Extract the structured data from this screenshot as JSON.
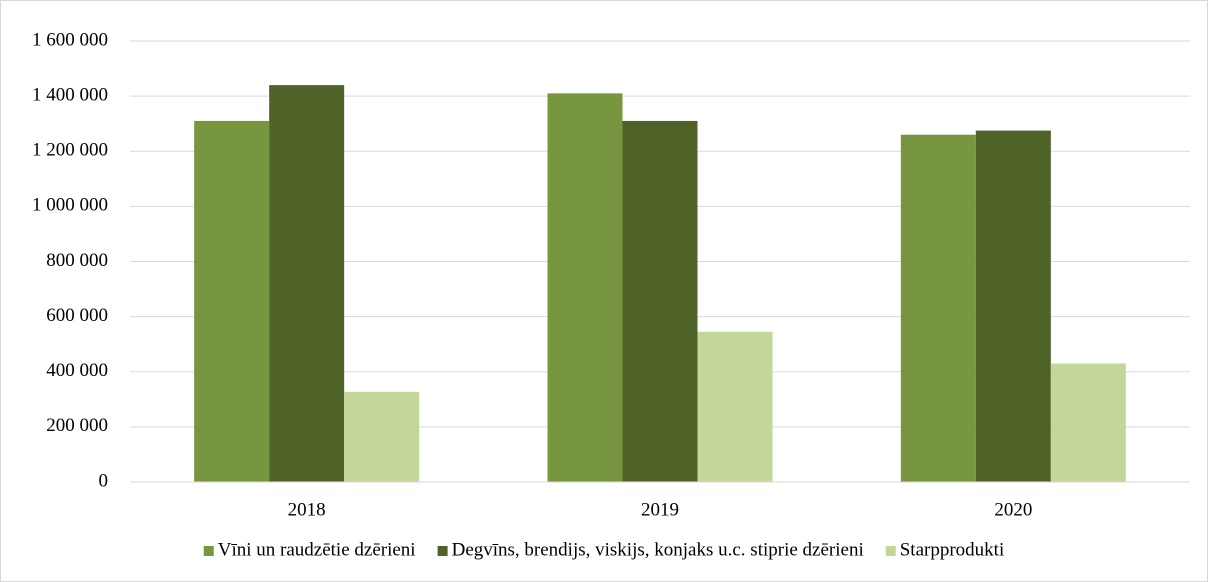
{
  "chart_data": {
    "type": "bar",
    "categories": [
      "2018",
      "2019",
      "2020"
    ],
    "series": [
      {
        "name": "Vīni un raudzētie dzērieni",
        "color": "#77963f",
        "values": [
          1310000,
          1410000,
          1260000
        ]
      },
      {
        "name": "Degvīns, brendijs, viskijs, konjaks u.c. stiprie dzērieni",
        "color": "#4f6228",
        "values": [
          1440000,
          1310000,
          1275000
        ]
      },
      {
        "name": "Starpprodukti",
        "color": "#c4d79b",
        "values": [
          327000,
          545000,
          430000
        ]
      }
    ],
    "ylim": [
      0,
      1600000
    ],
    "yticks": [
      0,
      {
        "value": 200000,
        "label": "200 000"
      },
      {
        "value": 400000,
        "label": "400 000"
      },
      {
        "value": 600000,
        "label": "600 000"
      },
      {
        "value": 800000,
        "label": "800 000"
      },
      {
        "value": 1000000,
        "label": "1 000 000"
      },
      {
        "value": 1200000,
        "label": "1 200 000"
      },
      {
        "value": 1400000,
        "label": "1 400 000"
      },
      {
        "value": 1600000,
        "label": "1 600 000"
      }
    ],
    "grid": true,
    "legend": "bottom"
  }
}
